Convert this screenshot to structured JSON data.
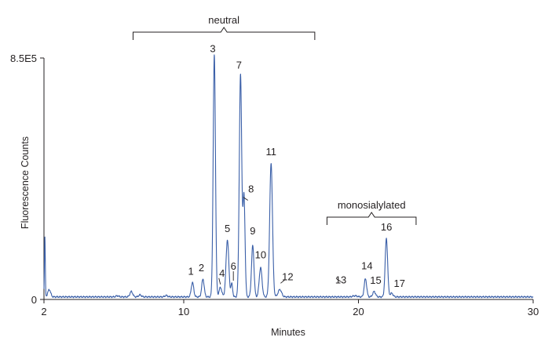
{
  "chart_data": {
    "type": "line",
    "title": "",
    "xlabel": "Minutes",
    "ylabel": "Fluorescence Counts",
    "xlim": [
      2,
      30
    ],
    "ylim": [
      0,
      850000
    ],
    "x_ticks": [
      {
        "value": 2,
        "label": "2"
      },
      {
        "value": 10,
        "label": "10"
      },
      {
        "value": 20,
        "label": "20"
      },
      {
        "value": 30,
        "label": "30"
      }
    ],
    "y_ticks": [
      {
        "value": 0,
        "label": "0"
      },
      {
        "value": 850000,
        "label": "8.5E5"
      }
    ],
    "grid": false,
    "series_color": "#3a5fa8",
    "baseline": 9000,
    "peaks": [
      {
        "label": "1",
        "x": 10.5,
        "y": 60000
      },
      {
        "label": "2",
        "x": 11.1,
        "y": 72000
      },
      {
        "label": "3",
        "x": 11.75,
        "y": 860000
      },
      {
        "label": "4",
        "x": 12.1,
        "y": 42000
      },
      {
        "label": "5",
        "x": 12.5,
        "y": 210000
      },
      {
        "label": "6",
        "x": 12.75,
        "y": 55000
      },
      {
        "label": "7",
        "x": 13.25,
        "y": 790000
      },
      {
        "label": "8",
        "x": 13.45,
        "y": 360000
      },
      {
        "label": "9",
        "x": 13.95,
        "y": 190000
      },
      {
        "label": "10",
        "x": 14.4,
        "y": 112000
      },
      {
        "label": "11",
        "x": 15.0,
        "y": 480000
      },
      {
        "label": "12",
        "x": 15.5,
        "y": 35000
      },
      {
        "label": "13",
        "x": 19.8,
        "y": 13000
      },
      {
        "label": "14",
        "x": 20.4,
        "y": 73000
      },
      {
        "label": "15",
        "x": 20.9,
        "y": 28000
      },
      {
        "label": "16",
        "x": 21.6,
        "y": 215000
      },
      {
        "label": "17",
        "x": 21.9,
        "y": 22000
      }
    ],
    "minor_features": [
      {
        "x": 2.05,
        "y": 220000
      },
      {
        "x": 2.3,
        "y": 35000
      },
      {
        "x": 7.0,
        "y": 28000
      },
      {
        "x": 7.5,
        "y": 16000
      },
      {
        "x": 9.0,
        "y": 14000
      },
      {
        "x": 6.2,
        "y": 13000
      }
    ],
    "annotations": [
      {
        "text": "neutral",
        "x_range": [
          7.1,
          17.5
        ]
      },
      {
        "text": "monosialylated",
        "x_range": [
          18.2,
          23.3
        ]
      }
    ]
  }
}
